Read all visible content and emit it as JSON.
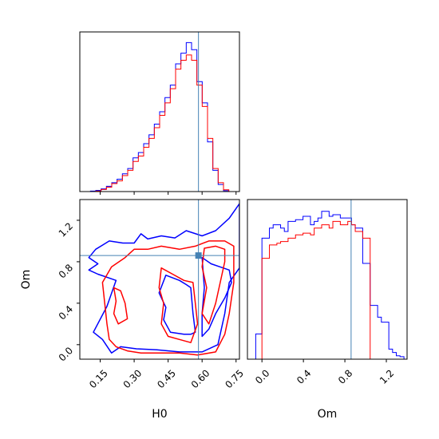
{
  "chart_data": {
    "type": "corner",
    "parameters": [
      "H0",
      "Om"
    ],
    "truths": {
      "H0": 0.584,
      "Om": 0.86
    },
    "truth_color": "#4682b4",
    "series_colors": [
      "#0000ff",
      "#ff0000"
    ],
    "axes": {
      "H0": {
        "xlim": [
          0.06,
          0.765
        ],
        "ticks": [
          "0.15",
          "0.30",
          "0.45",
          "0.60",
          "0.75"
        ],
        "tick_values": [
          0.15,
          0.3,
          0.45,
          0.6,
          0.75
        ]
      },
      "Om": {
        "lim": [
          -0.14,
          1.4
        ],
        "ticks": [
          "0.0",
          "0.4",
          "0.8",
          "1.2"
        ],
        "tick_values": [
          0.0,
          0.4,
          0.8,
          1.2
        ]
      }
    },
    "hist_H0": {
      "edges": [
        0.06,
        0.0835,
        0.107,
        0.1305,
        0.154,
        0.1775,
        0.201,
        0.2245,
        0.248,
        0.2715,
        0.295,
        0.3185,
        0.342,
        0.3655,
        0.389,
        0.4125,
        0.436,
        0.4595,
        0.483,
        0.5065,
        0.53,
        0.5535,
        0.577,
        0.6005,
        0.624,
        0.6475,
        0.671,
        0.6945,
        0.718,
        0.7415,
        0.765
      ],
      "blue": [
        0,
        0,
        0.003,
        0.007,
        0.015,
        0.03,
        0.05,
        0.07,
        0.1,
        0.13,
        0.19,
        0.22,
        0.27,
        0.32,
        0.38,
        0.45,
        0.53,
        0.6,
        0.72,
        0.78,
        0.84,
        0.8,
        0.62,
        0.5,
        0.28,
        0.12,
        0.04,
        0.005,
        0,
        0
      ],
      "red": [
        0,
        0,
        0,
        0.003,
        0.012,
        0.025,
        0.045,
        0.06,
        0.09,
        0.12,
        0.17,
        0.2,
        0.25,
        0.3,
        0.36,
        0.43,
        0.5,
        0.58,
        0.69,
        0.74,
        0.77,
        0.74,
        0.6,
        0.48,
        0.3,
        0.13,
        0.05,
        0.01,
        0,
        0
      ]
    },
    "hist_Om": {
      "edges": [
        -0.06,
        0.0,
        0.036,
        0.072,
        0.108,
        0.144,
        0.18,
        0.216,
        0.252,
        0.288,
        0.324,
        0.36,
        0.396,
        0.432,
        0.468,
        0.504,
        0.54,
        0.576,
        0.612,
        0.648,
        0.684,
        0.72,
        0.756,
        0.792,
        0.828,
        0.864,
        0.9,
        0.936,
        0.972,
        1.008,
        1.044,
        1.08,
        1.116,
        1.152,
        1.188,
        1.224,
        1.26,
        1.296,
        1.332,
        1.37,
        1.4
      ],
      "blue": [
        0.15,
        0.72,
        0.72,
        0.78,
        0.8,
        0.8,
        0.78,
        0.76,
        0.82,
        0.82,
        0.83,
        0.83,
        0.85,
        0.85,
        0.8,
        0.82,
        0.84,
        0.88,
        0.88,
        0.85,
        0.86,
        0.86,
        0.84,
        0.84,
        0.84,
        0.8,
        0.78,
        0.78,
        0.57,
        0.57,
        0.32,
        0.32,
        0.25,
        0.22,
        0.22,
        0.06,
        0.04,
        0.02,
        0.015,
        0
      ],
      "red": [
        0,
        0.6,
        0.6,
        0.68,
        0.68,
        0.69,
        0.7,
        0.7,
        0.72,
        0.72,
        0.74,
        0.74,
        0.75,
        0.75,
        0.74,
        0.78,
        0.78,
        0.8,
        0.8,
        0.78,
        0.82,
        0.82,
        0.8,
        0.8,
        0.82,
        0.8,
        0.76,
        0.76,
        0.72,
        0.72,
        0,
        0,
        0,
        0,
        0,
        0,
        0,
        0,
        0,
        0
      ]
    },
    "contours": [
      {
        "series": 0,
        "points": [
          [
            0.13,
            0.92
          ],
          [
            0.19,
            1.0
          ],
          [
            0.25,
            0.98
          ],
          [
            0.3,
            0.98
          ],
          [
            0.33,
            1.07
          ],
          [
            0.36,
            1.02
          ],
          [
            0.42,
            1.05
          ],
          [
            0.48,
            1.03
          ],
          [
            0.53,
            1.1
          ],
          [
            0.6,
            1.05
          ],
          [
            0.66,
            1.1
          ],
          [
            0.72,
            1.22
          ],
          [
            0.765,
            1.36
          ],
          [
            0.765,
            0.74
          ],
          [
            0.72,
            0.6
          ],
          [
            0.7,
            0.3
          ],
          [
            0.67,
            0.0
          ],
          [
            0.6,
            -0.07
          ],
          [
            0.5,
            -0.07
          ],
          [
            0.4,
            -0.05
          ],
          [
            0.31,
            -0.04
          ],
          [
            0.24,
            -0.02
          ],
          [
            0.2,
            -0.08
          ],
          [
            0.16,
            0.05
          ],
          [
            0.12,
            0.12
          ],
          [
            0.18,
            0.37
          ],
          [
            0.22,
            0.62
          ],
          [
            0.14,
            0.68
          ],
          [
            0.1,
            0.72
          ],
          [
            0.14,
            0.78
          ],
          [
            0.1,
            0.84
          ]
        ]
      },
      {
        "series": 0,
        "points": [
          [
            0.44,
            0.67
          ],
          [
            0.5,
            0.62
          ],
          [
            0.53,
            0.58
          ],
          [
            0.55,
            0.55
          ],
          [
            0.56,
            0.3
          ],
          [
            0.57,
            0.12
          ],
          [
            0.55,
            0.1
          ],
          [
            0.52,
            0.1
          ],
          [
            0.46,
            0.12
          ],
          [
            0.43,
            0.24
          ],
          [
            0.44,
            0.36
          ],
          [
            0.41,
            0.5
          ]
        ]
      },
      {
        "series": 0,
        "points": [
          [
            0.6,
            0.84
          ],
          [
            0.64,
            0.78
          ],
          [
            0.68,
            0.75
          ],
          [
            0.72,
            0.72
          ],
          [
            0.73,
            0.6
          ],
          [
            0.7,
            0.45
          ],
          [
            0.66,
            0.3
          ],
          [
            0.63,
            0.15
          ],
          [
            0.6,
            0.08
          ],
          [
            0.6,
            0.3
          ],
          [
            0.61,
            0.55
          ]
        ]
      },
      {
        "series": 1,
        "points": [
          [
            0.26,
            0.84
          ],
          [
            0.3,
            0.92
          ],
          [
            0.36,
            0.92
          ],
          [
            0.42,
            0.95
          ],
          [
            0.5,
            0.92
          ],
          [
            0.57,
            0.95
          ],
          [
            0.63,
            1.0
          ],
          [
            0.7,
            1.0
          ],
          [
            0.74,
            0.95
          ],
          [
            0.74,
            0.6
          ],
          [
            0.72,
            0.3
          ],
          [
            0.7,
            0.1
          ],
          [
            0.66,
            -0.07
          ],
          [
            0.58,
            -0.1
          ],
          [
            0.5,
            -0.08
          ],
          [
            0.4,
            -0.08
          ],
          [
            0.33,
            -0.08
          ],
          [
            0.27,
            -0.06
          ],
          [
            0.22,
            -0.02
          ],
          [
            0.19,
            0.05
          ],
          [
            0.18,
            0.2
          ],
          [
            0.17,
            0.4
          ],
          [
            0.16,
            0.6
          ],
          [
            0.2,
            0.75
          ]
        ]
      },
      {
        "series": 1,
        "points": [
          [
            0.42,
            0.74
          ],
          [
            0.47,
            0.68
          ],
          [
            0.52,
            0.62
          ],
          [
            0.56,
            0.6
          ],
          [
            0.57,
            0.4
          ],
          [
            0.58,
            0.2
          ],
          [
            0.55,
            0.02
          ],
          [
            0.5,
            0.05
          ],
          [
            0.45,
            0.08
          ],
          [
            0.42,
            0.2
          ],
          [
            0.43,
            0.4
          ],
          [
            0.41,
            0.55
          ]
        ]
      },
      {
        "series": 1,
        "points": [
          [
            0.21,
            0.55
          ],
          [
            0.24,
            0.52
          ],
          [
            0.26,
            0.4
          ],
          [
            0.27,
            0.25
          ],
          [
            0.23,
            0.2
          ],
          [
            0.21,
            0.3
          ],
          [
            0.22,
            0.42
          ]
        ]
      },
      {
        "series": 1,
        "points": [
          [
            0.61,
            0.93
          ],
          [
            0.66,
            0.95
          ],
          [
            0.7,
            0.92
          ],
          [
            0.7,
            0.8
          ],
          [
            0.68,
            0.6
          ],
          [
            0.66,
            0.4
          ],
          [
            0.63,
            0.2
          ],
          [
            0.6,
            0.3
          ],
          [
            0.62,
            0.55
          ],
          [
            0.6,
            0.75
          ]
        ]
      }
    ]
  }
}
